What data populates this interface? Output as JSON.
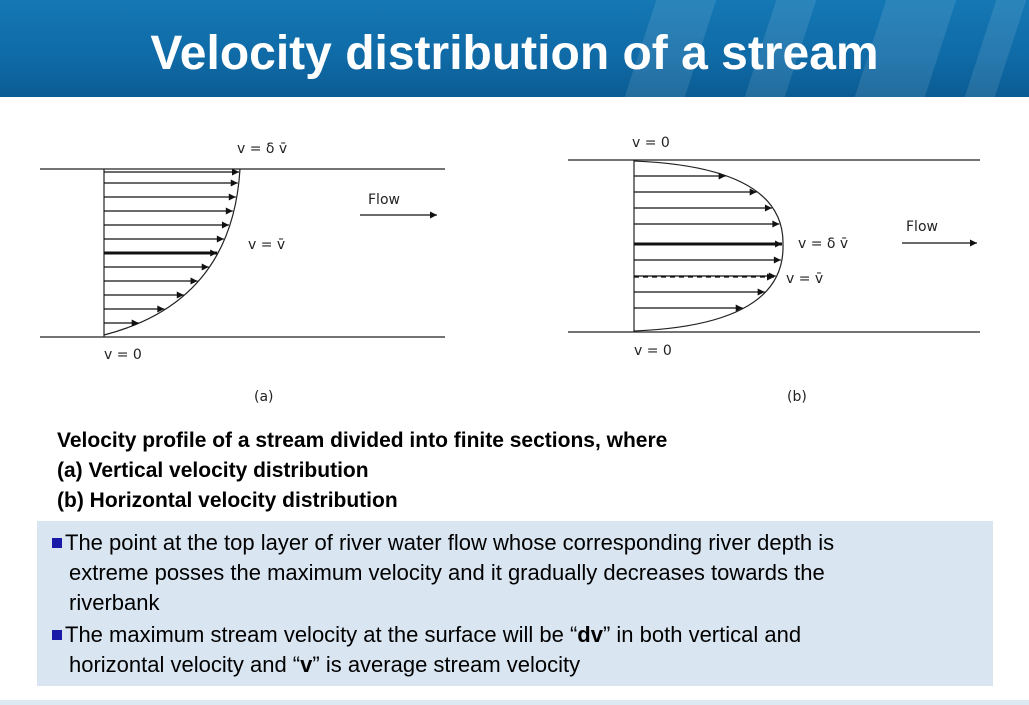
{
  "title": "Velocity distribution of a stream",
  "diagram": {
    "a": {
      "label_top": "v = δ v̄",
      "label_mid": "v = v̄",
      "label_bottom": "v = 0",
      "flow_label": "Flow",
      "caption": "(a)"
    },
    "b": {
      "label_top": "v = 0",
      "label_max": "v = δ v̄",
      "label_avg": "v = v̄",
      "label_bottom": "v = 0",
      "flow_label": "Flow",
      "caption": "(b)"
    }
  },
  "caption": {
    "line1": "Velocity profile of a stream divided into finite sections, where",
    "line2": "(a) Vertical velocity distribution",
    "line3": "(b) Horizontal velocity distribution"
  },
  "notes": {
    "b1_l1": "The point at the top layer of river water flow whose corresponding river depth is",
    "b1_l2": "extreme posses the maximum velocity and it gradually decreases towards the",
    "b1_l3": "riverbank",
    "b2_pre": "The maximum stream velocity at the surface will be “",
    "b2_dv": "dv",
    "b2_mid": "” in both vertical and",
    "b2_l2_pre": "horizontal velocity and “",
    "b2_v": "v",
    "b2_l2_post": "” is average stream velocity"
  },
  "colors": {
    "header": "#1478b4",
    "notes_bg": "#d9e5f1",
    "bullet": "#1a1aa8"
  }
}
